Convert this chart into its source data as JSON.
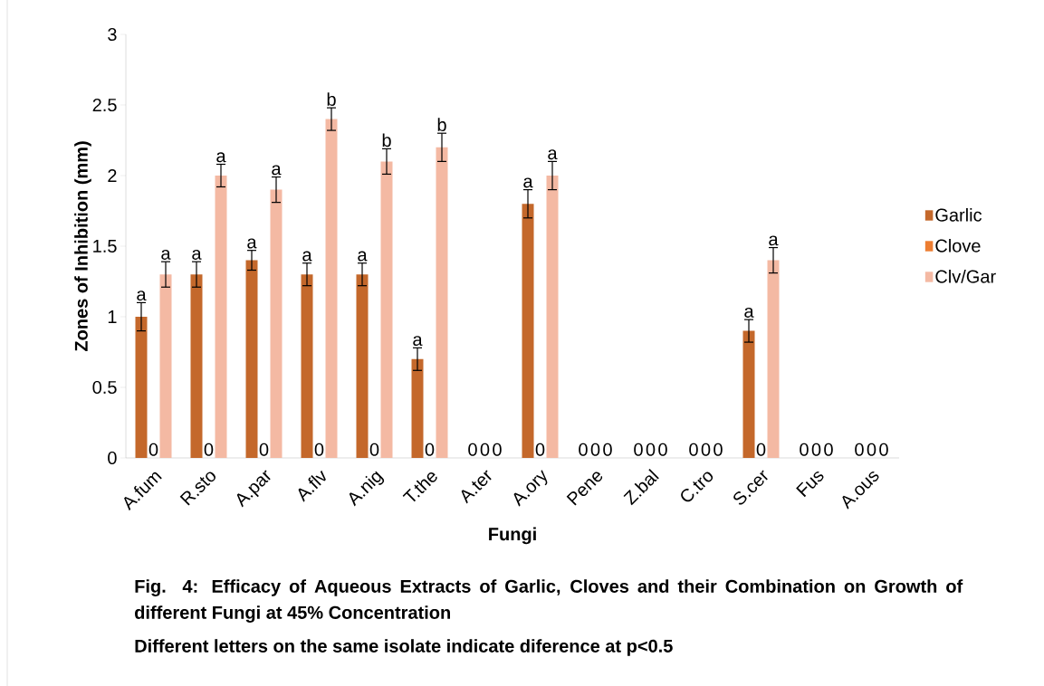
{
  "chart_data": {
    "type": "bar",
    "title": "Fig. 4: Efficacy of Aqueous Extracts of Garlic, Cloves and their Combination on Growth of different Fungi at 45% Concentration",
    "annotations": [
      "Different letters on the same isolate indicate diference at p<0.5"
    ],
    "xlabel": "Fungi",
    "ylabel": "Zones of Inhibition (mm)",
    "categories": [
      "A.fum",
      "R.sto",
      "A.par",
      "A.flv",
      "A.nig",
      "T.the",
      "A.ter",
      "A.ory",
      "Pene",
      "Z.bal",
      "C.tro",
      "S.cer",
      "Fus",
      "A.ous"
    ],
    "series": [
      {
        "name": "Garlic",
        "color": "#c4682b",
        "values": [
          1.0,
          1.3,
          1.4,
          1.3,
          1.3,
          0.7,
          0,
          1.8,
          0,
          0,
          0,
          0.9,
          0,
          0
        ],
        "errors": [
          0.1,
          0.09,
          0.07,
          0.08,
          0.08,
          0.08,
          null,
          0.1,
          null,
          null,
          null,
          0.08,
          null,
          null
        ],
        "value_labels": [
          "a",
          "a",
          "a",
          "a",
          "a",
          "a",
          "0",
          "a",
          "0",
          "0",
          "0",
          "a",
          "0",
          "0"
        ]
      },
      {
        "name": "Clove",
        "color": "#ed7d31",
        "values": [
          0,
          0,
          0,
          0,
          0,
          0,
          0,
          0,
          0,
          0,
          0,
          0,
          0,
          0
        ],
        "value_labels": [
          "0",
          "0",
          "0",
          "0",
          "0",
          "0",
          "0",
          "0",
          "0",
          "0",
          "0",
          "0",
          "0",
          "0"
        ]
      },
      {
        "name": "Clv/Gar",
        "color": "#f4b9a3",
        "values": [
          1.3,
          2.0,
          1.9,
          2.4,
          2.1,
          2.2,
          0,
          2.0,
          0,
          0,
          0,
          1.4,
          0,
          0
        ],
        "errors": [
          0.09,
          0.08,
          0.09,
          0.08,
          0.09,
          0.1,
          null,
          0.1,
          null,
          null,
          null,
          0.09,
          null,
          null
        ],
        "value_labels": [
          "a",
          "a",
          "a",
          "b",
          "b",
          "b",
          "0",
          "a",
          "0",
          "0",
          "0",
          "a",
          "0",
          "0"
        ]
      }
    ],
    "ylim": [
      0,
      3
    ],
    "yticks": [
      0,
      0.5,
      1,
      1.5,
      2,
      2.5,
      3
    ],
    "legend": "right"
  }
}
